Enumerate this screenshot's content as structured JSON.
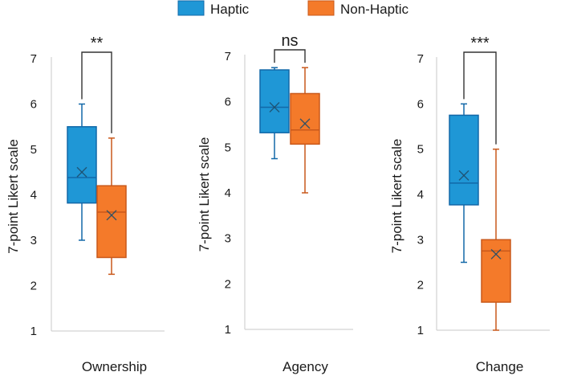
{
  "colors": {
    "haptic_fill": "#1f97d6",
    "haptic_stroke": "#1268a8",
    "nonhaptic_fill": "#f47a2a",
    "nonhaptic_stroke": "#c9581a",
    "axis": "#c8c8c8",
    "bracket": "#333333"
  },
  "chart_data": {
    "type": "box",
    "legend": {
      "placement": "top-center",
      "items": [
        {
          "name": "Haptic"
        },
        {
          "name": "Non-Haptic"
        }
      ]
    },
    "panels": [
      {
        "category": "Ownership",
        "ylabel": "7-point Likert scale",
        "ylim": [
          1,
          7
        ],
        "yticks": [
          "1",
          "2",
          "3",
          "4",
          "5",
          "6",
          "7"
        ],
        "significance": "**",
        "boxes": [
          {
            "series": "Haptic",
            "min": 3.0,
            "q1": 3.82,
            "median": 4.38,
            "q3": 5.5,
            "max": 6.0,
            "mean": 4.5
          },
          {
            "series": "Non-Haptic",
            "min": 2.25,
            "q1": 2.62,
            "median": 3.62,
            "q3": 4.2,
            "max": 5.25,
            "mean": 3.55
          }
        ]
      },
      {
        "category": "Agency",
        "ylabel": "7-point Likert scale",
        "ylim": [
          1,
          7
        ],
        "yticks": [
          "1",
          "2",
          "3",
          "4",
          "5",
          "6",
          "7"
        ],
        "significance": "ns",
        "boxes": [
          {
            "series": "Haptic",
            "min": 4.75,
            "q1": 5.32,
            "median": 5.88,
            "q3": 6.7,
            "max": 6.75,
            "mean": 5.88
          },
          {
            "series": "Non-Haptic",
            "min": 4.0,
            "q1": 5.07,
            "median": 5.38,
            "q3": 6.18,
            "max": 6.75,
            "mean": 5.52
          }
        ]
      },
      {
        "category": "Change",
        "ylabel": "7-point Likert scale",
        "ylim": [
          1,
          7
        ],
        "yticks": [
          "1",
          "2",
          "3",
          "4",
          "5",
          "6",
          "7"
        ],
        "significance": "***",
        "boxes": [
          {
            "series": "Haptic",
            "min": 2.5,
            "q1": 3.77,
            "median": 4.25,
            "q3": 5.75,
            "max": 6.0,
            "mean": 4.42
          },
          {
            "series": "Non-Haptic",
            "min": 1.0,
            "q1": 1.62,
            "median": 2.75,
            "q3": 3.0,
            "max": 5.0,
            "mean": 2.68
          }
        ]
      }
    ]
  }
}
